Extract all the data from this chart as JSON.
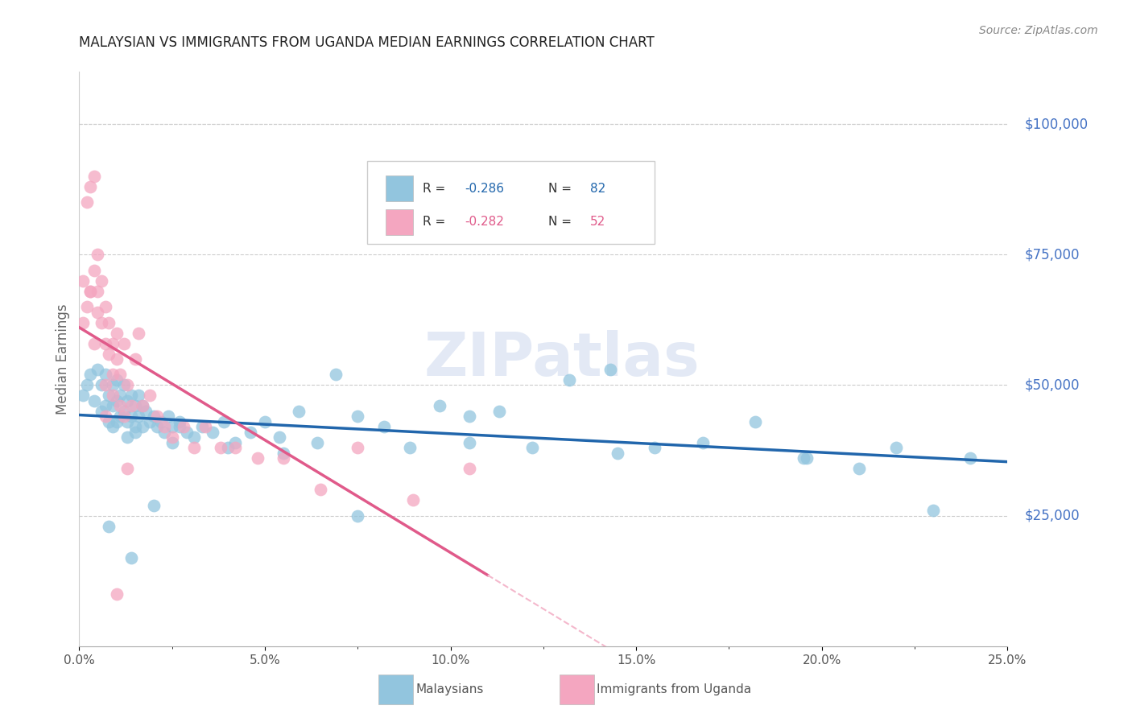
{
  "title": "MALAYSIAN VS IMMIGRANTS FROM UGANDA MEDIAN EARNINGS CORRELATION CHART",
  "source": "Source: ZipAtlas.com",
  "ylabel": "Median Earnings",
  "ytick_labels": [
    "$25,000",
    "$50,000",
    "$75,000",
    "$100,000"
  ],
  "ytick_values": [
    25000,
    50000,
    75000,
    100000
  ],
  "legend_label_1": "Malaysians",
  "legend_label_2": "Immigrants from Uganda",
  "legend_R1": "R = -0.286",
  "legend_N1": "N = 82",
  "legend_R2": "R = -0.282",
  "legend_N2": "N = 52",
  "color_blue": "#92c5de",
  "color_pink": "#f4a6c0",
  "color_blue_line": "#2166ac",
  "color_pink_line": "#e05a8a",
  "color_pink_dash": "#f4b8cc",
  "color_ylabel": "#666666",
  "color_ytick": "#4472C4",
  "color_title": "#222222",
  "watermark": "ZIPatlas",
  "xlim": [
    0.0,
    0.25
  ],
  "ylim": [
    0,
    110000
  ],
  "background": "#ffffff",
  "grid_color": "#cccccc",
  "blue_scatter_x": [
    0.001,
    0.002,
    0.003,
    0.004,
    0.005,
    0.006,
    0.006,
    0.007,
    0.007,
    0.008,
    0.008,
    0.009,
    0.009,
    0.009,
    0.01,
    0.01,
    0.01,
    0.011,
    0.011,
    0.012,
    0.012,
    0.013,
    0.013,
    0.013,
    0.014,
    0.014,
    0.015,
    0.015,
    0.016,
    0.016,
    0.017,
    0.017,
    0.018,
    0.019,
    0.02,
    0.021,
    0.022,
    0.023,
    0.024,
    0.025,
    0.027,
    0.029,
    0.031,
    0.033,
    0.036,
    0.039,
    0.042,
    0.046,
    0.05,
    0.054,
    0.059,
    0.064,
    0.069,
    0.075,
    0.082,
    0.089,
    0.097,
    0.105,
    0.113,
    0.122,
    0.132,
    0.143,
    0.155,
    0.168,
    0.182,
    0.196,
    0.21,
    0.22,
    0.23,
    0.24,
    0.008,
    0.014,
    0.025,
    0.055,
    0.075,
    0.105,
    0.145,
    0.195,
    0.015,
    0.02,
    0.027,
    0.04
  ],
  "blue_scatter_y": [
    48000,
    50000,
    52000,
    47000,
    53000,
    50000,
    45000,
    52000,
    46000,
    48000,
    43000,
    50000,
    46000,
    42000,
    51000,
    47000,
    43000,
    48000,
    44000,
    50000,
    45000,
    47000,
    43000,
    40000,
    48000,
    44000,
    46000,
    42000,
    48000,
    44000,
    46000,
    42000,
    45000,
    43000,
    44000,
    42000,
    43000,
    41000,
    44000,
    42000,
    43000,
    41000,
    40000,
    42000,
    41000,
    43000,
    39000,
    41000,
    43000,
    40000,
    45000,
    39000,
    52000,
    44000,
    42000,
    38000,
    46000,
    39000,
    45000,
    38000,
    51000,
    53000,
    38000,
    39000,
    43000,
    36000,
    34000,
    38000,
    26000,
    36000,
    23000,
    17000,
    39000,
    37000,
    25000,
    44000,
    37000,
    36000,
    41000,
    27000,
    42000,
    38000
  ],
  "pink_scatter_x": [
    0.001,
    0.001,
    0.002,
    0.002,
    0.003,
    0.003,
    0.004,
    0.004,
    0.004,
    0.005,
    0.005,
    0.006,
    0.006,
    0.007,
    0.007,
    0.007,
    0.008,
    0.008,
    0.009,
    0.009,
    0.009,
    0.01,
    0.01,
    0.011,
    0.011,
    0.012,
    0.012,
    0.013,
    0.014,
    0.015,
    0.016,
    0.017,
    0.019,
    0.021,
    0.023,
    0.025,
    0.028,
    0.031,
    0.034,
    0.038,
    0.042,
    0.048,
    0.055,
    0.065,
    0.075,
    0.09,
    0.105,
    0.003,
    0.005,
    0.007,
    0.01,
    0.013
  ],
  "pink_scatter_y": [
    62000,
    70000,
    65000,
    85000,
    88000,
    68000,
    90000,
    72000,
    58000,
    64000,
    75000,
    62000,
    70000,
    58000,
    65000,
    50000,
    62000,
    56000,
    52000,
    58000,
    48000,
    55000,
    60000,
    52000,
    46000,
    58000,
    44000,
    50000,
    46000,
    55000,
    60000,
    46000,
    48000,
    44000,
    42000,
    40000,
    42000,
    38000,
    42000,
    38000,
    38000,
    36000,
    36000,
    30000,
    38000,
    28000,
    34000,
    68000,
    68000,
    44000,
    10000,
    34000
  ]
}
